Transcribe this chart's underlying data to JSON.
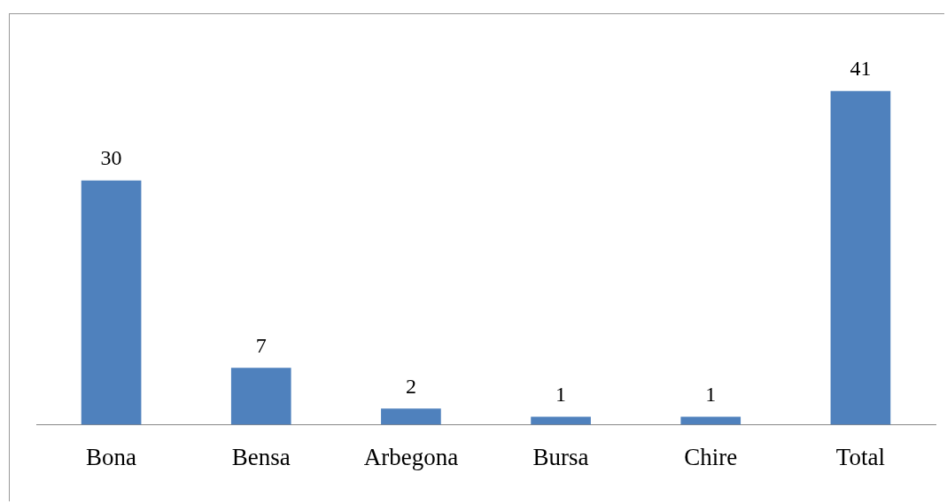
{
  "chart_data": {
    "type": "bar",
    "categories": [
      "Bona",
      "Bensa",
      "Arbegona",
      "Bursa",
      "Chire",
      "Total"
    ],
    "values": [
      30,
      7,
      2,
      1,
      1,
      41
    ],
    "color": "#4f81bd",
    "data_labels": true,
    "grid": false,
    "legend": false
  }
}
